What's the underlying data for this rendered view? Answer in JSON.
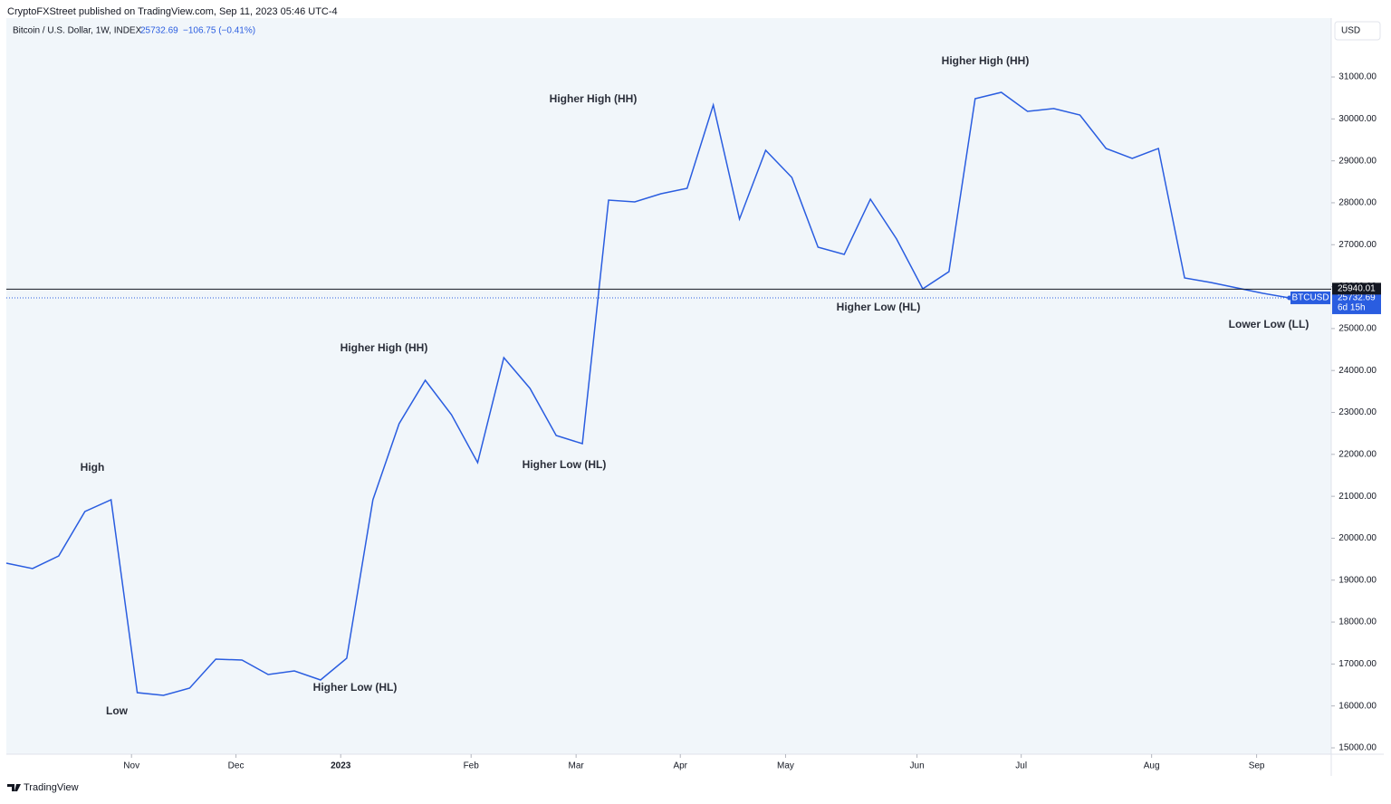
{
  "chart_data": {
    "type": "line",
    "publisher": "CryptoFXStreet published on TradingView.com, Sep 11, 2023 05:46 UTC-4",
    "title": "Bitcoin / U.S. Dollar, 1W, INDEX",
    "change": "−106.75 (−0.41%)",
    "currency": "USD",
    "countdown": "6d 15h",
    "brand": "TradingView",
    "x": [
      0,
      1,
      2,
      3,
      4,
      5,
      6,
      7,
      8,
      9,
      10,
      11,
      12,
      13,
      14,
      15,
      16,
      17,
      18,
      19,
      20,
      21,
      22,
      23,
      24,
      25,
      26,
      27,
      28,
      29,
      30,
      31,
      32,
      33,
      34,
      35,
      36,
      37,
      38,
      39,
      40,
      41,
      42,
      43,
      44,
      45,
      46,
      47,
      48,
      49
    ],
    "xlim": [
      0,
      50.6
    ],
    "xticks": [
      {
        "value": 4.78,
        "label": "Nov"
      },
      {
        "value": 8.77,
        "label": "Dec"
      },
      {
        "value": 12.77,
        "label": "2023"
      },
      {
        "value": 17.75,
        "label": "Feb"
      },
      {
        "value": 21.76,
        "label": "Mar"
      },
      {
        "value": 25.74,
        "label": "Apr"
      },
      {
        "value": 29.76,
        "label": "May"
      },
      {
        "value": 34.78,
        "label": "Jun"
      },
      {
        "value": 38.76,
        "label": "Jul"
      },
      {
        "value": 43.74,
        "label": "Aug"
      },
      {
        "value": 47.75,
        "label": "Sep"
      }
    ],
    "series": [
      {
        "name": "BTCUSD",
        "color": "#2a5de0",
        "values": [
          19405,
          19276,
          19578,
          20636,
          20917,
          16317,
          16252,
          16425,
          17116,
          17095,
          16749,
          16835,
          16620,
          17138,
          20917,
          22731,
          23767,
          22946,
          21802,
          24307,
          23573,
          22450,
          22255,
          28064,
          28021,
          28215,
          28345,
          30332,
          27611,
          29252,
          28604,
          26941,
          26768,
          28086,
          27136,
          25948,
          26358,
          30483,
          30634,
          30181,
          30246,
          30094,
          29295,
          29058,
          29295,
          26207,
          26099,
          25970,
          25840,
          25732.69
        ]
      }
    ],
    "level": 25940.01,
    "ylim": [
      14849,
      32404
    ],
    "yticks": [
      {
        "value": 15000,
        "label": "15000.00"
      },
      {
        "value": 16000,
        "label": "16000.00"
      },
      {
        "value": 17000,
        "label": "17000.00"
      },
      {
        "value": 18000,
        "label": "18000.00"
      },
      {
        "value": 19000,
        "label": "19000.00"
      },
      {
        "value": 20000,
        "label": "20000.00"
      },
      {
        "value": 21000,
        "label": "21000.00"
      },
      {
        "value": 22000,
        "label": "22000.00"
      },
      {
        "value": 23000,
        "label": "23000.00"
      },
      {
        "value": 24000,
        "label": "24000.00"
      },
      {
        "value": 25000,
        "label": "25000.00"
      },
      {
        "value": 26000,
        "label": "26000.00"
      },
      {
        "value": 27000,
        "label": "27000.00"
      },
      {
        "value": 28000,
        "label": "28000.00"
      },
      {
        "value": 29000,
        "label": "29000.00"
      },
      {
        "value": 30000,
        "label": "30000.00"
      },
      {
        "value": 31000,
        "label": "31000.00"
      }
    ],
    "annotations": [
      "High",
      "Low",
      "Higher Low (HL)",
      "Higher High (HH)",
      "Higher Low (HL)",
      "Higher High (HH)",
      "Higher Low (HL)",
      "Higher High (HH)",
      "Lower  Low (LL)"
    ]
  }
}
